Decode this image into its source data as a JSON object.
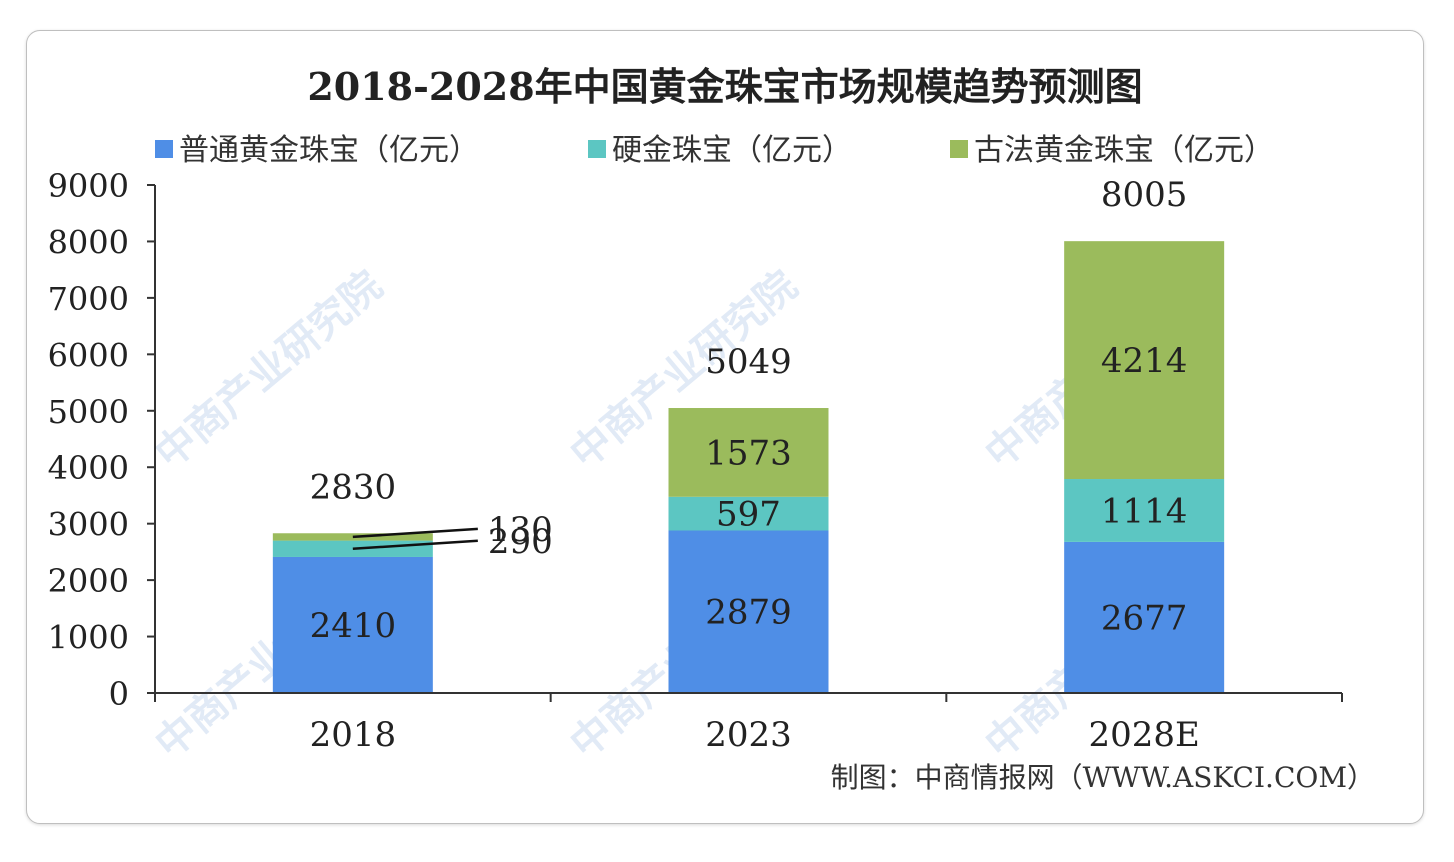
{
  "chart_data": {
    "type": "bar",
    "stacked": true,
    "title": "2018-2028年中国黄金珠宝市场规模趋势预测图",
    "categories": [
      "2018",
      "2023",
      "2028E"
    ],
    "series": [
      {
        "name": "普通黄金珠宝（亿元）",
        "color": "#4f8ee6",
        "values": [
          2410,
          2879,
          2677
        ]
      },
      {
        "name": "硬金珠宝（亿元）",
        "color": "#5cc6c2",
        "values": [
          290,
          597,
          1114
        ]
      },
      {
        "name": "古法黄金珠宝（亿元）",
        "color": "#9bbb5c",
        "values": [
          130,
          1573,
          4214
        ]
      }
    ],
    "totals": [
      2830,
      5049,
      8005
    ],
    "ylim": [
      0,
      9000
    ],
    "yticks": [
      0,
      1000,
      2000,
      3000,
      4000,
      5000,
      6000,
      7000,
      8000,
      9000
    ],
    "grid": false,
    "legend_position": "top",
    "source": "制图：中商情报网（WWW.ASKCI.COM）",
    "watermark": "中商产业研究院"
  }
}
